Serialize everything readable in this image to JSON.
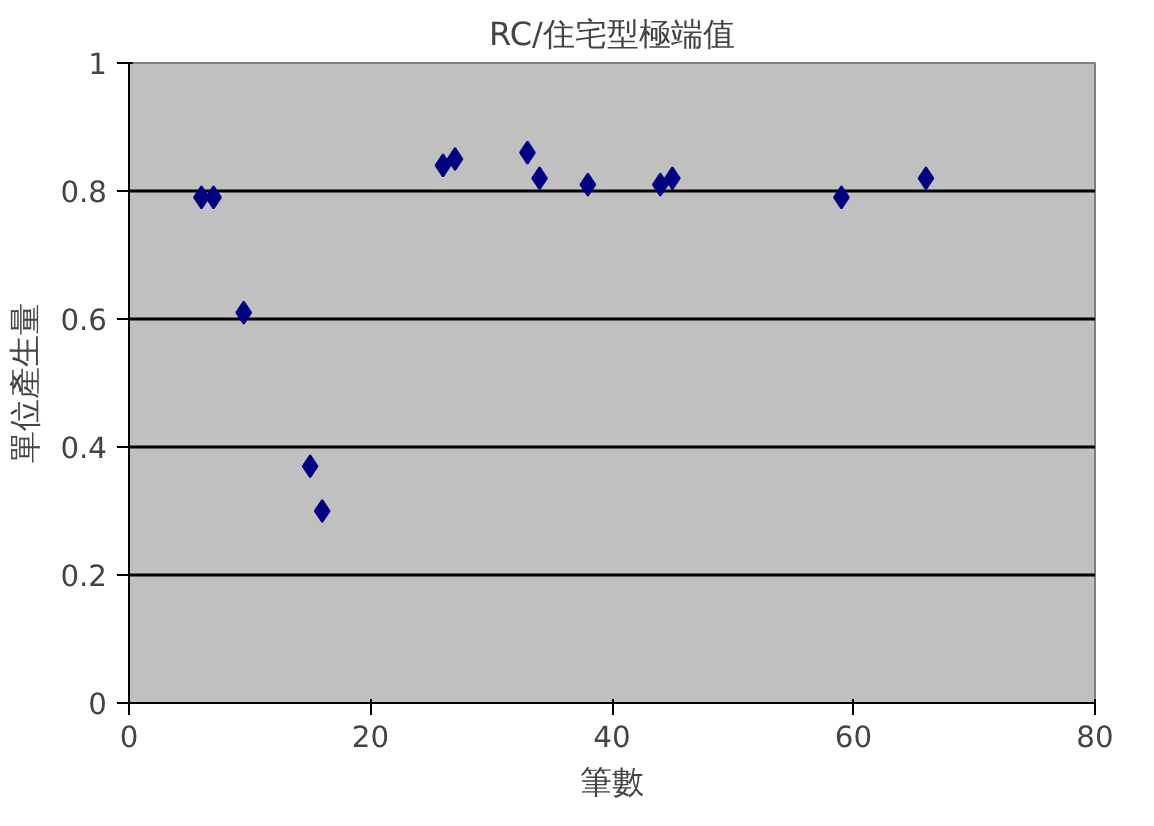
{
  "chart_data": {
    "type": "scatter",
    "title": "RC/住宅型極端值",
    "xlabel": "筆數",
    "ylabel": "單位產生量",
    "x": [
      6,
      7,
      9.5,
      15,
      16,
      26,
      27,
      33,
      34,
      38,
      44,
      45,
      59,
      66
    ],
    "series": [
      {
        "color": "#000080",
        "values": [
          0.79,
          0.79,
          0.61,
          0.37,
          0.3,
          0.84,
          0.85,
          0.86,
          0.82,
          0.81,
          0.81,
          0.82,
          0.79,
          0.82
        ]
      }
    ],
    "xlim": [
      0,
      80
    ],
    "xticks": [
      0,
      20,
      40,
      60,
      80
    ],
    "ylim": [
      0,
      1
    ],
    "yticks": [
      0,
      0.2,
      0.4,
      0.6,
      0.8,
      1
    ],
    "grid": "y",
    "marker": "diamond"
  }
}
